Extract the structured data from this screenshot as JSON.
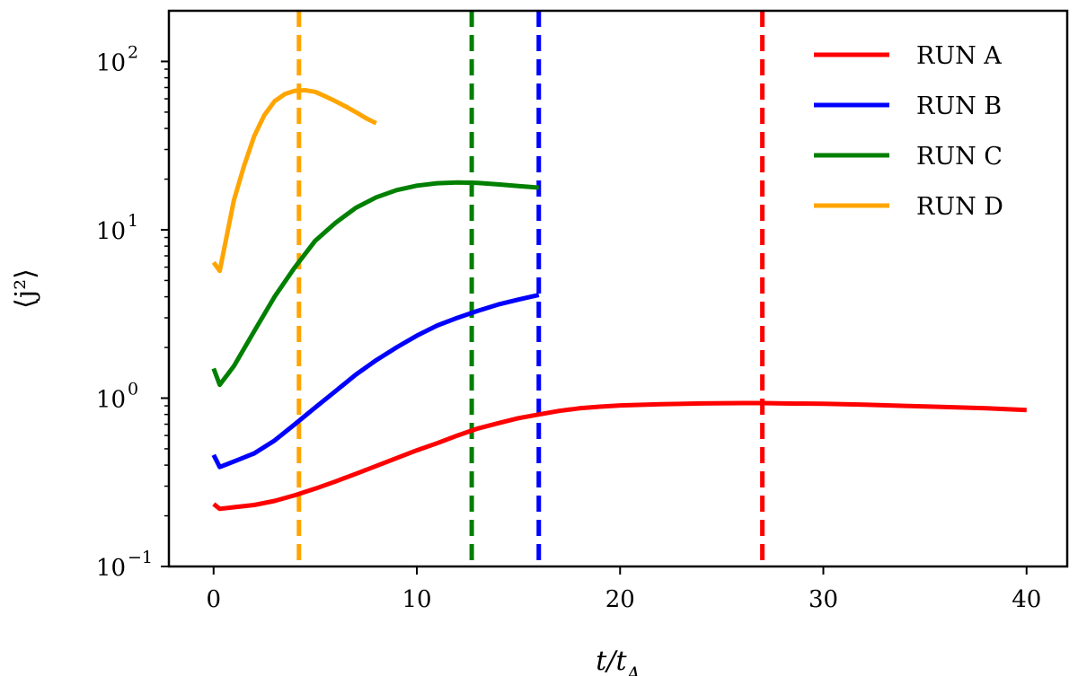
{
  "chart_data": {
    "type": "line",
    "title": "",
    "xlabel": "t/t_A",
    "ylabel": "⟨j²⟩",
    "xlim": [
      -2.2,
      42.0
    ],
    "ylim": [
      0.1,
      200
    ],
    "yscale": "log",
    "xticks": [
      0,
      10,
      20,
      30,
      40
    ],
    "yticks": [
      {
        "value": 0.1,
        "base": "10",
        "exp": "−1"
      },
      {
        "value": 1,
        "base": "10",
        "exp": "0"
      },
      {
        "value": 10,
        "base": "10",
        "exp": "1"
      },
      {
        "value": 100,
        "base": "10",
        "exp": "2"
      }
    ],
    "legend": {
      "placement": "top-right"
    },
    "series": [
      {
        "name": "RUN A",
        "color": "#ff0000",
        "x": [
          0,
          0.3,
          1,
          2,
          3,
          4,
          5,
          6,
          7,
          8,
          9,
          10,
          11,
          12,
          13,
          14,
          15,
          16,
          17,
          18,
          19,
          20,
          22,
          24,
          26,
          27,
          28,
          30,
          32,
          34,
          36,
          38,
          40
        ],
        "y": [
          0.235,
          0.22,
          0.225,
          0.232,
          0.245,
          0.265,
          0.29,
          0.32,
          0.355,
          0.395,
          0.44,
          0.49,
          0.54,
          0.6,
          0.66,
          0.71,
          0.76,
          0.8,
          0.84,
          0.87,
          0.89,
          0.905,
          0.92,
          0.93,
          0.935,
          0.935,
          0.93,
          0.925,
          0.915,
          0.9,
          0.885,
          0.87,
          0.85
        ]
      },
      {
        "name": "RUN B",
        "color": "#0000ff",
        "x": [
          0,
          0.3,
          1,
          2,
          3,
          4,
          5,
          6,
          7,
          8,
          9,
          10,
          11,
          12,
          13,
          14,
          15,
          16
        ],
        "y": [
          0.46,
          0.39,
          0.42,
          0.47,
          0.56,
          0.7,
          0.88,
          1.1,
          1.38,
          1.68,
          2.0,
          2.35,
          2.7,
          3.0,
          3.3,
          3.6,
          3.85,
          4.1
        ]
      },
      {
        "name": "RUN C",
        "color": "#008000",
        "x": [
          0,
          0.3,
          1,
          2,
          3,
          4,
          5,
          6,
          7,
          8,
          9,
          10,
          11,
          12,
          13,
          14,
          15,
          16
        ],
        "y": [
          1.5,
          1.2,
          1.55,
          2.5,
          4.0,
          6.0,
          8.6,
          11.0,
          13.5,
          15.6,
          17.2,
          18.3,
          18.9,
          19.1,
          19.0,
          18.6,
          18.2,
          17.8
        ]
      },
      {
        "name": "RUN D",
        "color": "#ffa500",
        "x": [
          0,
          0.3,
          1,
          1.5,
          2,
          2.5,
          3,
          3.5,
          4,
          4.5,
          5,
          5.5,
          6,
          6.5,
          7,
          7.5,
          8
        ],
        "y": [
          6.4,
          5.7,
          15,
          24,
          36,
          48,
          58,
          64,
          67,
          67.5,
          66,
          62,
          58,
          54,
          50,
          46,
          43
        ]
      }
    ],
    "vlines": [
      {
        "x": 4.2,
        "color": "#ffa500"
      },
      {
        "x": 12.7,
        "color": "#008000"
      },
      {
        "x": 16.0,
        "color": "#0000ff"
      },
      {
        "x": 27.0,
        "color": "#ff0000"
      }
    ]
  }
}
